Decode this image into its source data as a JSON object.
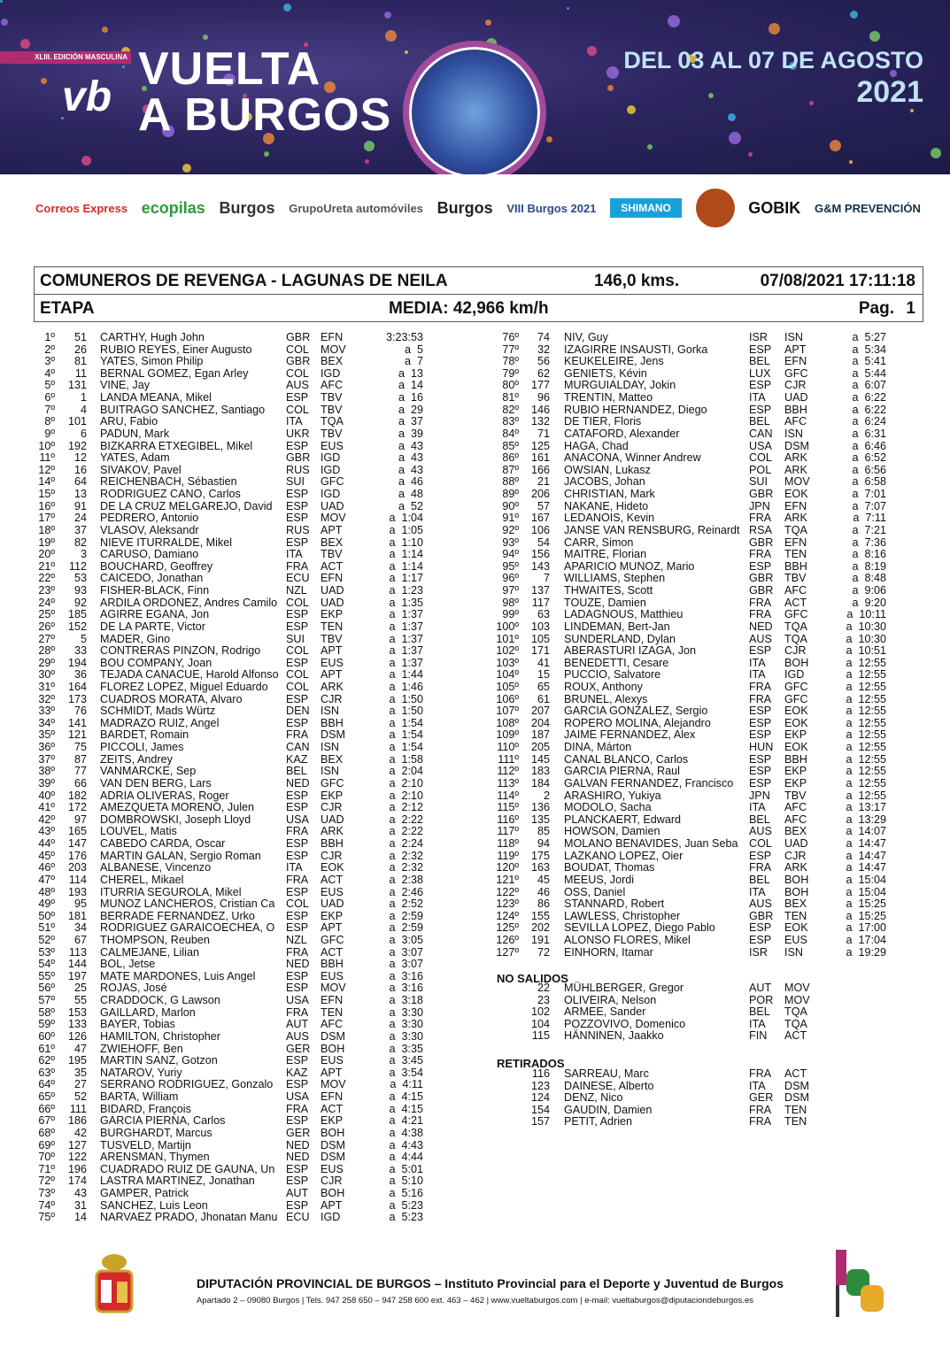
{
  "banner": {
    "edition": "XLIII. EDICIÓN MASCULINA",
    "logo": "vb",
    "title_line1": "VUELTA",
    "title_line2": "A BURGOS",
    "dates_line1": "DEL 03 AL 07 DE AGOSTO",
    "dates_line2": "2021"
  },
  "sponsors": [
    "Correos Express",
    "ecopilas",
    "Burgos",
    "GrupoUreta automóviles",
    "Burgos",
    "VIII Burgos 2021",
    "SHIMANO",
    "Burgos",
    "GOBIK",
    "G&M PREVENCIÓN"
  ],
  "header": {
    "stage": "COMUNEROS DE REVENGA - LAGUNAS DE NEILA",
    "distance": "146,0 kms.",
    "datetime": "07/08/2021 17:11:18",
    "type": "ETAPA",
    "average": "MEDIA: 42,966 km/h",
    "page_label": "Pag.",
    "page": "1"
  },
  "colors": {
    "banner": "#2c2560",
    "accent": "#b02c72",
    "dates": "#bfe3f5"
  },
  "results_left": [
    [
      "1º",
      "51",
      "CARTHY, Hugh John",
      "GBR",
      "EFN",
      "3:23:53"
    ],
    [
      "2º",
      "26",
      "RUBIO REYES, Einer Augusto",
      "COL",
      "MOV",
      "a  5"
    ],
    [
      "3º",
      "81",
      "YATES, Simon Philip",
      "GBR",
      "BEX",
      "a  7"
    ],
    [
      "4º",
      "11",
      "BERNAL GOMEZ, Egan Arley",
      "COL",
      "IGD",
      "a  13"
    ],
    [
      "5º",
      "131",
      "VINE, Jay",
      "AUS",
      "AFC",
      "a  14"
    ],
    [
      "6º",
      "1",
      "LANDA MEANA, Mikel",
      "ESP",
      "TBV",
      "a  16"
    ],
    [
      "7º",
      "4",
      "BUITRAGO SANCHEZ, Santiago",
      "COL",
      "TBV",
      "a  29"
    ],
    [
      "8º",
      "101",
      "ARU, Fabio",
      "ITA",
      "TQA",
      "a  37"
    ],
    [
      "9º",
      "6",
      "PADUN, Mark",
      "UKR",
      "TBV",
      "a  39"
    ],
    [
      "10º",
      "192",
      "BIZKARRA ETXEGIBEL, Mikel",
      "ESP",
      "EUS",
      "a  43"
    ],
    [
      "11º",
      "12",
      "YATES, Adam",
      "GBR",
      "IGD",
      "a  43"
    ],
    [
      "12º",
      "16",
      "SIVAKOV, Pavel",
      "RUS",
      "IGD",
      "a  43"
    ],
    [
      "14º",
      "64",
      "REICHENBACH, Sébastien",
      "SUI",
      "GFC",
      "a  46"
    ],
    [
      "15º",
      "13",
      "RODRIGUEZ CANO, Carlos",
      "ESP",
      "IGD",
      "a  48"
    ],
    [
      "16º",
      "91",
      "DE LA CRUZ MELGAREJO, David",
      "ESP",
      "UAD",
      "a  52"
    ],
    [
      "17º",
      "24",
      "PEDRERO, Antonio",
      "ESP",
      "MOV",
      "a  1:04"
    ],
    [
      "18º",
      "37",
      "VLASOV, Aleksandr",
      "RUS",
      "APT",
      "a  1:05"
    ],
    [
      "19º",
      "82",
      "NIEVE ITURRALDE, Mikel",
      "ESP",
      "BEX",
      "a  1:10"
    ],
    [
      "20º",
      "3",
      "CARUSO, Damiano",
      "ITA",
      "TBV",
      "a  1:14"
    ],
    [
      "21º",
      "112",
      "BOUCHARD, Geoffrey",
      "FRA",
      "ACT",
      "a  1:14"
    ],
    [
      "22º",
      "53",
      "CAICEDO, Jonathan",
      "ECU",
      "EFN",
      "a  1:17"
    ],
    [
      "23º",
      "93",
      "FISHER-BLACK, Finn",
      "NZL",
      "UAD",
      "a  1:23"
    ],
    [
      "24º",
      "92",
      "ARDILA ORDOÑEZ, Andres Camilo",
      "COL",
      "UAD",
      "a  1:35"
    ],
    [
      "25º",
      "185",
      "AGIRRE EGAÑA, Jon",
      "ESP",
      "EKP",
      "a  1:37"
    ],
    [
      "26º",
      "152",
      "DE LA PARTE, Victor",
      "ESP",
      "TEN",
      "a  1:37"
    ],
    [
      "27º",
      "5",
      "MÄDER, Gino",
      "SUI",
      "TBV",
      "a  1:37"
    ],
    [
      "28º",
      "33",
      "CONTRERAS PINZON, Rodrigo",
      "COL",
      "APT",
      "a  1:37"
    ],
    [
      "29º",
      "194",
      "BOU COMPANY, Joan",
      "ESP",
      "EUS",
      "a  1:37"
    ],
    [
      "30º",
      "36",
      "TEJADA CANACUE, Harold Alfonso",
      "COL",
      "APT",
      "a  1:44"
    ],
    [
      "31º",
      "164",
      "FLOREZ LOPEZ, Miguel Eduardo",
      "COL",
      "ARK",
      "a  1:46"
    ],
    [
      "32º",
      "173",
      "CUADROS MORATA, Alvaro",
      "ESP",
      "CJR",
      "a  1:50"
    ],
    [
      "33º",
      "76",
      "SCHMIDT, Mads Würtz",
      "DEN",
      "ISN",
      "a  1:50"
    ],
    [
      "34º",
      "141",
      "MADRAZO RUIZ, Angel",
      "ESP",
      "BBH",
      "a  1:54"
    ],
    [
      "35º",
      "121",
      "BARDET, Romain",
      "FRA",
      "DSM",
      "a  1:54"
    ],
    [
      "36º",
      "75",
      "PICCOLI, James",
      "CAN",
      "ISN",
      "a  1:54"
    ],
    [
      "37º",
      "87",
      "ZEITS, Andrey",
      "KAZ",
      "BEX",
      "a  1:58"
    ],
    [
      "38º",
      "77",
      "VANMARCKE, Sep",
      "BEL",
      "ISN",
      "a  2:04"
    ],
    [
      "39º",
      "66",
      "VAN DEN BERG, Lars",
      "NED",
      "GFC",
      "a  2:10"
    ],
    [
      "40º",
      "182",
      "ADRIA OLIVERAS, Roger",
      "ESP",
      "EKP",
      "a  2:10"
    ],
    [
      "41º",
      "172",
      "AMEZQUETA MORENO, Julen",
      "ESP",
      "CJR",
      "a  2:12"
    ],
    [
      "42º",
      "97",
      "DOMBROWSKI, Joseph Lloyd",
      "USA",
      "UAD",
      "a  2:22"
    ],
    [
      "43º",
      "165",
      "LOUVEL, Matis",
      "FRA",
      "ARK",
      "a  2:22"
    ],
    [
      "44º",
      "147",
      "CABEDO CARDA, Oscar",
      "ESP",
      "BBH",
      "a  2:24"
    ],
    [
      "45º",
      "176",
      "MARTIN GALAN, Sergio Roman",
      "ESP",
      "CJR",
      "a  2:32"
    ],
    [
      "46º",
      "203",
      "ALBANESE, Vincenzo",
      "ITA",
      "EOK",
      "a  2:32"
    ],
    [
      "47º",
      "114",
      "CHEREL, Mikael",
      "FRA",
      "ACT",
      "a  2:38"
    ],
    [
      "48º",
      "193",
      "ITURRIA SEGUROLA, Mikel",
      "ESP",
      "EUS",
      "a  2:46"
    ],
    [
      "49º",
      "95",
      "MUÑOZ LANCHEROS, Cristian Ca",
      "COL",
      "UAD",
      "a  2:52"
    ],
    [
      "50º",
      "181",
      "BERRADE FERNANDEZ, Urko",
      "ESP",
      "EKP",
      "a  2:59"
    ],
    [
      "51º",
      "34",
      "RODRIGUEZ GARAICOECHEA, O",
      "ESP",
      "APT",
      "a  2:59"
    ],
    [
      "52º",
      "67",
      "THOMPSON, Reuben",
      "NZL",
      "GFC",
      "a  3:05"
    ],
    [
      "53º",
      "113",
      "CALMEJANE, Lilian",
      "FRA",
      "ACT",
      "a  3:07"
    ],
    [
      "54º",
      "144",
      "BOL, Jetse",
      "NED",
      "BBH",
      "a  3:07"
    ],
    [
      "55º",
      "197",
      "MATE MARDONES, Luis Angel",
      "ESP",
      "EUS",
      "a  3:16"
    ],
    [
      "56º",
      "25",
      "ROJAS, José",
      "ESP",
      "MOV",
      "a  3:16"
    ],
    [
      "57º",
      "55",
      "CRADDOCK, G Lawson",
      "USA",
      "EFN",
      "a  3:18"
    ],
    [
      "58º",
      "153",
      "GAILLARD, Marlon",
      "FRA",
      "TEN",
      "a  3:30"
    ],
    [
      "59º",
      "133",
      "BAYER, Tobias",
      "AUT",
      "AFC",
      "a  3:30"
    ],
    [
      "60º",
      "126",
      "HAMILTON, Christopher",
      "AUS",
      "DSM",
      "a  3:30"
    ],
    [
      "61º",
      "47",
      "ZWIEHOFF, Ben",
      "GER",
      "BOH",
      "a  3:35"
    ],
    [
      "62º",
      "195",
      "MARTIN SANZ, Gotzon",
      "ESP",
      "EUS",
      "a  3:45"
    ],
    [
      "63º",
      "35",
      "NATAROV, Yuriy",
      "KAZ",
      "APT",
      "a  3:54"
    ],
    [
      "64º",
      "27",
      "SERRANO RODRIGUEZ, Gonzalo",
      "ESP",
      "MOV",
      "a  4:11"
    ],
    [
      "65º",
      "52",
      "BARTA, William",
      "USA",
      "EFN",
      "a  4:15"
    ],
    [
      "66º",
      "111",
      "BIDARD, François",
      "FRA",
      "ACT",
      "a  4:15"
    ],
    [
      "67º",
      "186",
      "GARCIA PIERNA, Carlos",
      "ESP",
      "EKP",
      "a  4:21"
    ],
    [
      "68º",
      "42",
      "BURGHARDT, Marcus",
      "GER",
      "BOH",
      "a  4:38"
    ],
    [
      "69º",
      "127",
      "TUSVELD, Martijn",
      "NED",
      "DSM",
      "a  4:43"
    ],
    [
      "70º",
      "122",
      "ARENSMAN, Thymen",
      "NED",
      "DSM",
      "a  4:44"
    ],
    [
      "71º",
      "196",
      "CUADRADO RUIZ DE GAUNA, Un",
      "ESP",
      "EUS",
      "a  5:01"
    ],
    [
      "72º",
      "174",
      "LASTRA MARTINEZ, Jonathan",
      "ESP",
      "CJR",
      "a  5:10"
    ],
    [
      "73º",
      "43",
      "GAMPER, Patrick",
      "AUT",
      "BOH",
      "a  5:16"
    ],
    [
      "74º",
      "31",
      "SANCHEZ, Luis Leon",
      "ESP",
      "APT",
      "a  5:23"
    ],
    [
      "75º",
      "14",
      "NARVAEZ PRADO, Jhonatan Manu",
      "ECU",
      "IGD",
      "a  5:23"
    ]
  ],
  "results_right": [
    [
      "76º",
      "74",
      "NIV, Guy",
      "ISR",
      "ISN",
      "a  5:27"
    ],
    [
      "77º",
      "32",
      "IZAGIRRE INSAUSTI, Gorka",
      "ESP",
      "APT",
      "a  5:34"
    ],
    [
      "78º",
      "56",
      "KEUKELEIRE, Jens",
      "BEL",
      "EFN",
      "a  5:41"
    ],
    [
      "79º",
      "62",
      "GENIETS, Kévin",
      "LUX",
      "GFC",
      "a  5:44"
    ],
    [
      "80º",
      "177",
      "MURGUIALDAY, Jokin",
      "ESP",
      "CJR",
      "a  6:07"
    ],
    [
      "81º",
      "96",
      "TRENTIN, Matteo",
      "ITA",
      "UAD",
      "a  6:22"
    ],
    [
      "82º",
      "146",
      "RUBIO HERNANDEZ, Diego",
      "ESP",
      "BBH",
      "a  6:22"
    ],
    [
      "83º",
      "132",
      "DE TIER, Floris",
      "BEL",
      "AFC",
      "a  6:24"
    ],
    [
      "84º",
      "71",
      "CATAFORD, Alexander",
      "CAN",
      "ISN",
      "a  6:31"
    ],
    [
      "85º",
      "125",
      "HAGA, Chad",
      "USA",
      "DSM",
      "a  6:46"
    ],
    [
      "86º",
      "161",
      "ANACONA, Winner Andrew",
      "COL",
      "ARK",
      "a  6:52"
    ],
    [
      "87º",
      "166",
      "OWSIAN, Lukasz",
      "POL",
      "ARK",
      "a  6:56"
    ],
    [
      "88º",
      "21",
      "JACOBS, Johan",
      "SUI",
      "MOV",
      "a  6:58"
    ],
    [
      "89º",
      "206",
      "CHRISTIAN, Mark",
      "GBR",
      "EOK",
      "a  7:01"
    ],
    [
      "90º",
      "57",
      "NAKANE, Hideto",
      "JPN",
      "EFN",
      "a  7:07"
    ],
    [
      "91º",
      "167",
      "LEDANOIS, Kevin",
      "FRA",
      "ARK",
      "a  7:11"
    ],
    [
      "92º",
      "106",
      "JANSE VAN RENSBURG, Reinardt",
      "RSA",
      "TQA",
      "a  7:21"
    ],
    [
      "93º",
      "54",
      "CARR, Simon",
      "GBR",
      "EFN",
      "a  7:36"
    ],
    [
      "94º",
      "156",
      "MAITRE, Florian",
      "FRA",
      "TEN",
      "a  8:16"
    ],
    [
      "95º",
      "143",
      "APARICIO MUÑOZ, Mario",
      "ESP",
      "BBH",
      "a  8:19"
    ],
    [
      "96º",
      "7",
      "WILLIAMS, Stephen",
      "GBR",
      "TBV",
      "a  8:48"
    ],
    [
      "97º",
      "137",
      "THWAITES, Scott",
      "GBR",
      "AFC",
      "a  9:06"
    ],
    [
      "98º",
      "117",
      "TOUZE, Damien",
      "FRA",
      "ACT",
      "a  9:20"
    ],
    [
      "99º",
      "63",
      "LADAGNOUS, Matthieu",
      "FRA",
      "GFC",
      "a  10:11"
    ],
    [
      "100º",
      "103",
      "LINDEMAN, Bert-Jan",
      "NED",
      "TQA",
      "a  10:30"
    ],
    [
      "101º",
      "105",
      "SUNDERLAND, Dylan",
      "AUS",
      "TQA",
      "a  10:30"
    ],
    [
      "102º",
      "171",
      "ABERASTURI IZAGA, Jon",
      "ESP",
      "CJR",
      "a  10:51"
    ],
    [
      "103º",
      "41",
      "BENEDETTI, Cesare",
      "ITA",
      "BOH",
      "a  12:55"
    ],
    [
      "104º",
      "15",
      "PUCCIO, Salvatore",
      "ITA",
      "IGD",
      "a  12:55"
    ],
    [
      "105º",
      "65",
      "ROUX, Anthony",
      "FRA",
      "GFC",
      "a  12:55"
    ],
    [
      "106º",
      "61",
      "BRUNEL, Alexys",
      "FRA",
      "GFC",
      "a  12:55"
    ],
    [
      "107º",
      "207",
      "GARCIA GONZALEZ, Sergio",
      "ESP",
      "EOK",
      "a  12:55"
    ],
    [
      "108º",
      "204",
      "ROPERO MOLINA, Alejandro",
      "ESP",
      "EOK",
      "a  12:55"
    ],
    [
      "109º",
      "187",
      "JAIME FERNANDEZ, Alex",
      "ESP",
      "EKP",
      "a  12:55"
    ],
    [
      "110º",
      "205",
      "DINA, Márton",
      "HUN",
      "EOK",
      "a  12:55"
    ],
    [
      "111º",
      "145",
      "CANAL BLANCO, Carlos",
      "ESP",
      "BBH",
      "a  12:55"
    ],
    [
      "112º",
      "183",
      "GARCIA PIERNA, Raul",
      "ESP",
      "EKP",
      "a  12:55"
    ],
    [
      "113º",
      "184",
      "GALVAN FERNANDEZ, Francisco",
      "ESP",
      "EKP",
      "a  12:55"
    ],
    [
      "114º",
      "2",
      "ARASHIRO, Yukiya",
      "JPN",
      "TBV",
      "a  12:55"
    ],
    [
      "115º",
      "136",
      "MODOLO, Sacha",
      "ITA",
      "AFC",
      "a  13:17"
    ],
    [
      "116º",
      "135",
      "PLANCKAERT, Edward",
      "BEL",
      "AFC",
      "a  13:29"
    ],
    [
      "117º",
      "85",
      "HOWSON, Damien",
      "AUS",
      "BEX",
      "a  14:07"
    ],
    [
      "118º",
      "94",
      "MOLANO BENAVIDES, Juan Seba",
      "COL",
      "UAD",
      "a  14:47"
    ],
    [
      "119º",
      "175",
      "LAZKANO LOPEZ, Oier",
      "ESP",
      "CJR",
      "a  14:47"
    ],
    [
      "120º",
      "163",
      "BOUDAT, Thomas",
      "FRA",
      "ARK",
      "a  14:47"
    ],
    [
      "121º",
      "45",
      "MEEUS, Jordi",
      "BEL",
      "BOH",
      "a  15:04"
    ],
    [
      "122º",
      "46",
      "OSS, Daniel",
      "ITA",
      "BOH",
      "a  15:04"
    ],
    [
      "123º",
      "86",
      "STANNARD, Robert",
      "AUS",
      "BEX",
      "a  15:25"
    ],
    [
      "124º",
      "155",
      "LAWLESS, Christopher",
      "GBR",
      "TEN",
      "a  15:25"
    ],
    [
      "125º",
      "202",
      "SEVILLA LOPEZ, Diego Pablo",
      "ESP",
      "EOK",
      "a  17:00"
    ],
    [
      "126º",
      "191",
      "ALONSO FLORES, Mikel",
      "ESP",
      "EUS",
      "a  17:04"
    ],
    [
      "127º",
      "72",
      "EINHORN, Itamar",
      "ISR",
      "ISN",
      "a  19:29"
    ]
  ],
  "no_salidos": {
    "title": "NO SALIDOS",
    "riders": [
      [
        "22",
        "MÜHLBERGER, Gregor",
        "AUT",
        "MOV"
      ],
      [
        "23",
        "OLIVEIRA, Nelson",
        "POR",
        "MOV"
      ],
      [
        "102",
        "ARMEE, Sander",
        "BEL",
        "TQA"
      ],
      [
        "104",
        "POZZOVIVO, Domenico",
        "ITA",
        "TQA"
      ],
      [
        "115",
        "HÄNNINEN, Jaakko",
        "FIN",
        "ACT"
      ]
    ]
  },
  "retirados": {
    "title": "RETIRADOS",
    "riders": [
      [
        "116",
        "SARREAU, Marc",
        "FRA",
        "ACT"
      ],
      [
        "123",
        "DAINESE, Alberto",
        "ITA",
        "DSM"
      ],
      [
        "124",
        "DENZ, Nico",
        "GER",
        "DSM"
      ],
      [
        "154",
        "GAUDIN, Damien",
        "FRA",
        "TEN"
      ],
      [
        "157",
        "PETIT, Adrien",
        "FRA",
        "TEN"
      ]
    ]
  },
  "footer": {
    "title": "DIPUTACIÓN PROVINCIAL DE BURGOS – Instituto Provincial para el Deporte y Juventud de Burgos",
    "info": "Apartado 2 – 09080 Burgos | Tels. 947 258 650 – 947 258 600 ext. 463 – 462 | www.vueltaburgos.com | e-mail: vueltaburgos@diputaciondeburgos.es"
  }
}
